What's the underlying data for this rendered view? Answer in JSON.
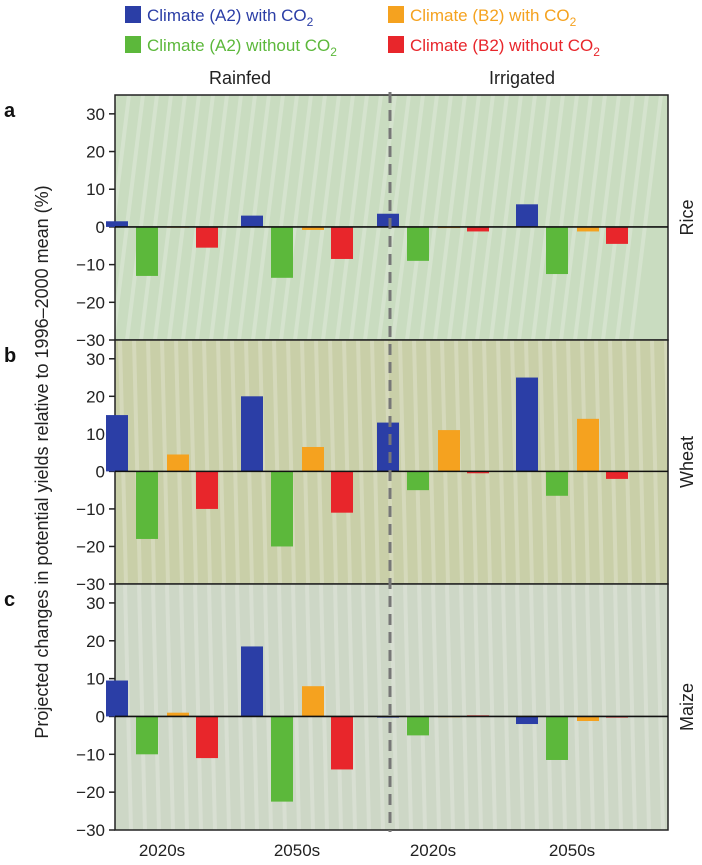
{
  "legend": [
    {
      "key": "a2_with",
      "text": "Climate (A2) with CO",
      "sub": "2",
      "color": "#2b3ea6"
    },
    {
      "key": "a2_without",
      "text": "Climate (A2) without CO",
      "sub": "2",
      "color": "#5cb83b"
    },
    {
      "key": "b2_with",
      "text": "Climate (B2) with CO",
      "sub": "2",
      "color": "#f5a21f"
    },
    {
      "key": "b2_without",
      "text": "Climate (B2) without CO",
      "sub": "2",
      "color": "#e8262b"
    }
  ],
  "headers": {
    "left": "Rainfed",
    "right": "Irrigated"
  },
  "ylabel": "Projected changes in potential yields relative to 1996–2000 mean (%)",
  "chart_data": [
    {
      "type": "bar",
      "panel": "a",
      "crop": "Rice",
      "groups": [
        "Rainfed",
        "Irrigated"
      ],
      "categories": [
        "2020s",
        "2050s",
        "2020s",
        "2050s"
      ],
      "ylim": [
        -30,
        35
      ],
      "yticks": [
        -30,
        -20,
        -10,
        0,
        10,
        20,
        30
      ],
      "series": [
        {
          "name": "Climate (A2) with CO2",
          "color": "#2b3ea6",
          "values": [
            1.5,
            3,
            3.5,
            6
          ]
        },
        {
          "name": "Climate (A2) without CO2",
          "color": "#5cb83b",
          "values": [
            -13,
            -13.5,
            -9,
            -12.5
          ]
        },
        {
          "name": "Climate (B2) with CO2",
          "color": "#f5a21f",
          "values": [
            0,
            -0.8,
            -0.3,
            -1.2
          ]
        },
        {
          "name": "Climate (B2) without CO2",
          "color": "#e8262b",
          "values": [
            -5.5,
            -8.5,
            -1.2,
            -4.5
          ]
        }
      ]
    },
    {
      "type": "bar",
      "panel": "b",
      "crop": "Wheat",
      "groups": [
        "Rainfed",
        "Irrigated"
      ],
      "categories": [
        "2020s",
        "2050s",
        "2020s",
        "2050s"
      ],
      "ylim": [
        -30,
        35
      ],
      "yticks": [
        -30,
        -20,
        -10,
        0,
        10,
        20,
        30
      ],
      "series": [
        {
          "name": "Climate (A2) with CO2",
          "color": "#2b3ea6",
          "values": [
            15,
            20,
            13,
            25
          ]
        },
        {
          "name": "Climate (A2) without CO2",
          "color": "#5cb83b",
          "values": [
            -18,
            -20,
            -5,
            -6.5
          ]
        },
        {
          "name": "Climate (B2) with CO2",
          "color": "#f5a21f",
          "values": [
            4.5,
            6.5,
            11,
            14
          ]
        },
        {
          "name": "Climate (B2) without CO2",
          "color": "#e8262b",
          "values": [
            -10,
            -11,
            -0.5,
            -2
          ]
        }
      ]
    },
    {
      "type": "bar",
      "panel": "c",
      "crop": "Maize",
      "groups": [
        "Rainfed",
        "Irrigated"
      ],
      "categories": [
        "2020s",
        "2050s",
        "2020s",
        "2050s"
      ],
      "ylim": [
        -30,
        35
      ],
      "yticks": [
        -30,
        -20,
        -10,
        0,
        10,
        20,
        30
      ],
      "series": [
        {
          "name": "Climate (A2) with CO2",
          "color": "#2b3ea6",
          "values": [
            9.5,
            18.5,
            -0.3,
            -2
          ]
        },
        {
          "name": "Climate (A2) without CO2",
          "color": "#5cb83b",
          "values": [
            -10,
            -22.5,
            -5,
            -11.5
          ]
        },
        {
          "name": "Climate (B2) with CO2",
          "color": "#f5a21f",
          "values": [
            1,
            8,
            0,
            -1.2
          ]
        },
        {
          "name": "Climate (B2) without CO2",
          "color": "#e8262b",
          "values": [
            -11,
            -14,
            0.3,
            -0.3
          ]
        }
      ]
    }
  ]
}
